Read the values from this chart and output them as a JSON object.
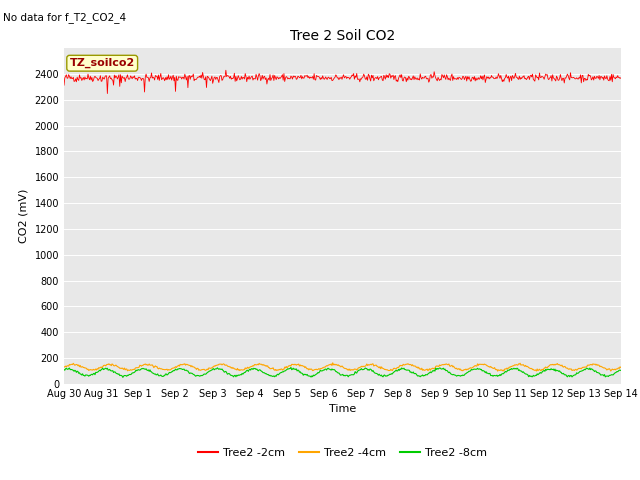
{
  "title": "Tree 2 Soil CO2",
  "no_data_text": "No data for f_T2_CO2_4",
  "xlabel": "Time",
  "ylabel": "CO2 (mV)",
  "ylim": [
    0,
    2600
  ],
  "yticks": [
    0,
    200,
    400,
    600,
    800,
    1000,
    1200,
    1400,
    1600,
    1800,
    2000,
    2200,
    2400
  ],
  "x_tick_labels": [
    "Aug 30",
    "Aug 31",
    "Sep 1",
    "Sep 2",
    "Sep 3",
    "Sep 4",
    "Sep 5",
    "Sep 6",
    "Sep 7",
    "Sep 8",
    "Sep 9",
    "Sep 10",
    "Sep 11",
    "Sep 12",
    "Sep 13",
    "Sep 14"
  ],
  "color_red": "#ff0000",
  "color_orange": "#ffa500",
  "color_green": "#00cc00",
  "bg_color": "#e8e8e8",
  "annotation_text": "TZ_soilco2",
  "annotation_bg": "#ffffcc",
  "legend_entries": [
    "Tree2 -2cm",
    "Tree2 -4cm",
    "Tree2 -8cm"
  ],
  "red_line_value": 2370,
  "orange_line_value": 130,
  "orange_amplitude": 22,
  "green_line_value": 90,
  "green_amplitude": 28,
  "wave_period": 1.0
}
